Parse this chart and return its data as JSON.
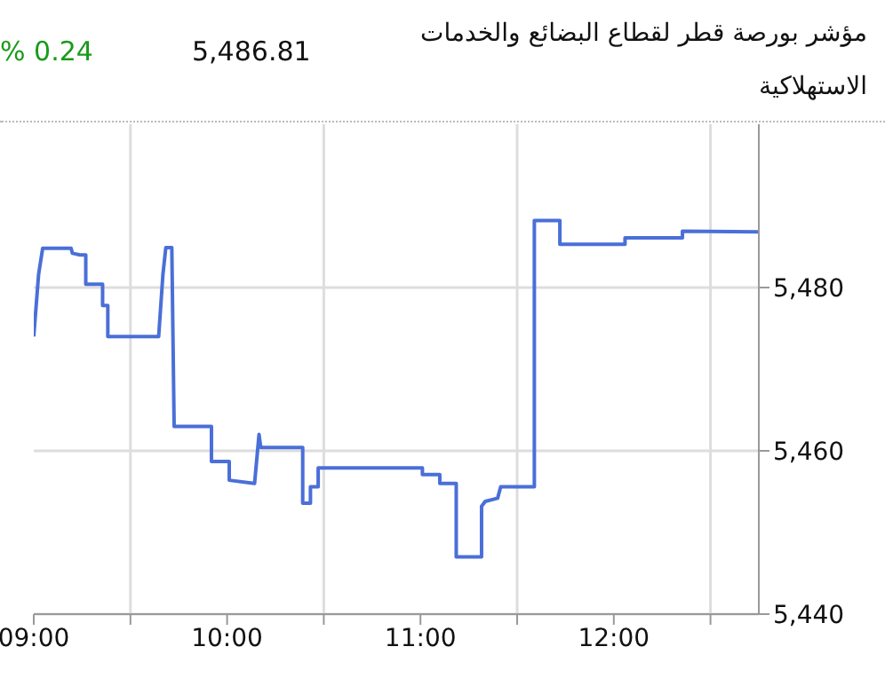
{
  "chart_data": {
    "type": "line",
    "title": "مؤشر بورصة قطر لقطاع البضائع والخدمات الاستهلاكية",
    "annotations": [
      "5,486.81",
      "% 0.24"
    ],
    "series": [
      {
        "color": "#4a6fd8",
        "x": [
          9.0,
          9.025,
          9.046,
          9.193,
          9.2,
          9.239,
          9.269,
          9.269,
          9.356,
          9.356,
          9.383,
          9.383,
          9.646,
          9.668,
          9.683,
          9.714,
          9.726,
          9.919,
          9.919,
          10.011,
          10.011,
          10.142,
          10.165,
          10.174,
          10.391,
          10.391,
          10.431,
          10.431,
          10.471,
          10.471,
          10.878,
          11.01,
          11.01,
          11.1,
          11.1,
          11.185,
          11.185,
          11.316,
          11.316,
          11.335,
          11.399,
          11.415,
          11.589,
          11.589,
          11.721,
          11.721,
          12.058,
          12.058,
          12.355,
          12.355,
          12.747
        ],
        "values": [
          5474,
          5481.6,
          5484.8,
          5484.8,
          5484.2,
          5484,
          5484,
          5480.4,
          5480.4,
          5477.8,
          5477.8,
          5474,
          5474,
          5481.6,
          5484.9,
          5484.9,
          5463,
          5463,
          5458.7,
          5458.7,
          5456.4,
          5456,
          5462,
          5460.4,
          5460.4,
          5453.6,
          5453.6,
          5455.6,
          5455.6,
          5457.9,
          5457.9,
          5457.9,
          5457.1,
          5457.1,
          5456,
          5456,
          5447,
          5447,
          5453.2,
          5453.8,
          5454.2,
          5455.6,
          5455.6,
          5488.2,
          5488.2,
          5485.3,
          5485.3,
          5486.1,
          5486.1,
          5486.9,
          5486.81
        ]
      }
    ],
    "xlim": [
      9.0,
      12.75
    ],
    "xticks": [
      {
        "value": 9,
        "label": "09:00"
      },
      {
        "value": 9.5,
        "label": null
      },
      {
        "value": 10,
        "label": "10:00"
      },
      {
        "value": 10.5,
        "label": null
      },
      {
        "value": 11,
        "label": "11:00"
      },
      {
        "value": 11.5,
        "label": null
      },
      {
        "value": 12,
        "label": "12:00"
      },
      {
        "value": 12.5,
        "label": null
      }
    ],
    "ylim": [
      5440,
      5500
    ],
    "yticks": [
      {
        "value": 5440,
        "label": "5,440"
      },
      {
        "value": 5460,
        "label": "5,460"
      },
      {
        "value": 5480,
        "label": "5,480"
      }
    ],
    "grid": true,
    "marker": "none",
    "line_style": "solid",
    "legend": false
  }
}
